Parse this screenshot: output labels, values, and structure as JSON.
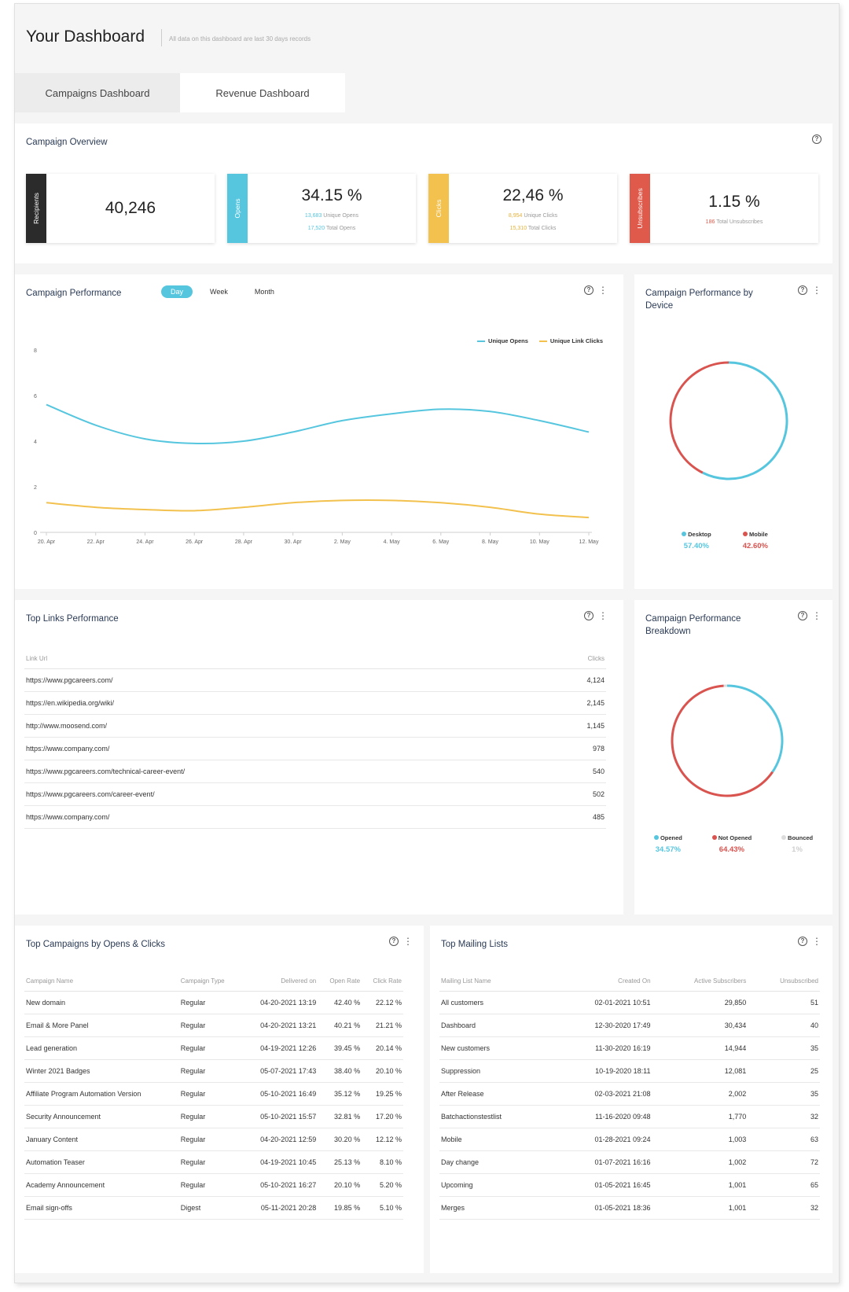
{
  "header": {
    "title": "Your Dashboard",
    "note": "All data on this dashboard are last 30 days records"
  },
  "tabs": [
    {
      "label": "Campaigns Dashboard",
      "active": true
    },
    {
      "label": "Revenue Dashboard",
      "active": false
    }
  ],
  "overview": {
    "title": "Campaign Overview",
    "kpis": [
      {
        "band": "Recipients",
        "color": "#2b2b2b",
        "value": "40,246",
        "sub": []
      },
      {
        "band": "Opens",
        "color": "#56c6df",
        "value": "34.15 %",
        "sub": [
          {
            "num": "13,683",
            "text": "Unique Opens"
          },
          {
            "num": "17,520",
            "text": "Total Opens"
          }
        ]
      },
      {
        "band": "Clicks",
        "color": "#f2c14e",
        "value": "22,46 %",
        "sub": [
          {
            "num": "8,954",
            "text": "Unique Clicks"
          },
          {
            "num": "15,310",
            "text": "Total Clicks"
          }
        ]
      },
      {
        "band": "Unsubscribes",
        "color": "#e05a4b",
        "value": "1.15 %",
        "sub": [
          {
            "num": "186",
            "text": "Total Unsubscribes"
          }
        ]
      }
    ]
  },
  "performance": {
    "title": "Campaign Performance",
    "periods": [
      {
        "label": "Day",
        "active": true
      },
      {
        "label": "Week",
        "active": false
      },
      {
        "label": "Month",
        "active": false
      }
    ]
  },
  "chart_data": [
    {
      "type": "line",
      "x": [
        "20. Apr",
        "22. Apr",
        "24. Apr",
        "26. Apr",
        "28. Apr",
        "30. Apr",
        "2. May",
        "4. May",
        "6. May",
        "8. May",
        "10. May",
        "12. May"
      ],
      "series": [
        {
          "name": "Unique Opens",
          "color": "#56c6df",
          "values": [
            5.6,
            4.7,
            4.1,
            3.9,
            4.0,
            4.4,
            4.9,
            5.2,
            5.4,
            5.3,
            4.9,
            4.4
          ]
        },
        {
          "name": "Unique Link Clicks",
          "color": "#f2c14e",
          "values": [
            1.3,
            1.1,
            1.0,
            0.95,
            1.1,
            1.3,
            1.4,
            1.4,
            1.3,
            1.1,
            0.8,
            0.65
          ]
        }
      ],
      "yticks": [
        0,
        2,
        4,
        6,
        8
      ],
      "ylim": [
        0,
        8
      ],
      "legend": "top-right",
      "grid": false
    },
    {
      "type": "pie",
      "labels": [
        "Desktop",
        "Mobile"
      ],
      "values": [
        57.4,
        42.6
      ],
      "pct_labels": [
        "57.40%",
        "42.60%"
      ],
      "colors": [
        "#56c6df",
        "#d9534f"
      ]
    },
    {
      "type": "pie",
      "labels": [
        "Opened",
        "Not Opened",
        "Bounced"
      ],
      "values": [
        34.57,
        64.43,
        1
      ],
      "pct_labels": [
        "34.57%",
        "64.43%",
        "1%"
      ],
      "colors": [
        "#56c6df",
        "#d9534f",
        "#dcdcdc"
      ]
    }
  ],
  "device": {
    "title": "Campaign Performance by Device"
  },
  "breakdown": {
    "title": "Campaign Performance Breakdown"
  },
  "links": {
    "title": "Top Links Performance",
    "headers": [
      "Link Url",
      "Clicks"
    ],
    "rows": [
      [
        "https://www.pgcareers.com/",
        "4,124"
      ],
      [
        "https://en.wikipedia.org/wiki/",
        "2,145"
      ],
      [
        "http://www.moosend.com/",
        "1,145"
      ],
      [
        "https://www.company.com/",
        "978"
      ],
      [
        "https://www.pgcareers.com/technical-career-event/",
        "540"
      ],
      [
        "https://www.pgcareers.com/career-event/",
        "502"
      ],
      [
        "https://www.company.com/",
        "485"
      ]
    ]
  },
  "campaigns": {
    "title": "Top Campaigns by Opens & Clicks",
    "headers": [
      "Campaign Name",
      "Campaign Type",
      "Delivered on",
      "Open Rate",
      "Click Rate"
    ],
    "rows": [
      [
        "New domain",
        "Regular",
        "04-20-2021 13:19",
        "42.40 %",
        "22.12 %"
      ],
      [
        "Email & More Panel",
        "Regular",
        "04-20-2021 13:21",
        "40.21 %",
        "21.21 %"
      ],
      [
        "Lead generation",
        "Regular",
        "04-19-2021 12:26",
        "39.45 %",
        "20.14 %"
      ],
      [
        "Winter 2021 Badges",
        "Regular",
        "05-07-2021 17:43",
        "38.40 %",
        "20.10 %"
      ],
      [
        "Affiliate Program Automation Version",
        "Regular",
        "05-10-2021 16:49",
        "35.12 %",
        "19.25 %"
      ],
      [
        "Security Announcement",
        "Regular",
        "05-10-2021 15:57",
        "32.81 %",
        "17.20 %"
      ],
      [
        "January Content",
        "Regular",
        "04-20-2021 12:59",
        "30.20 %",
        "12.12 %"
      ],
      [
        "Automation Teaser",
        "Regular",
        "04-19-2021 10:45",
        "25.13 %",
        "8.10 %"
      ],
      [
        "Academy Announcement",
        "Regular",
        "05-10-2021 16:27",
        "20.10 %",
        "5.20 %"
      ],
      [
        "Email sign-offs",
        "Digest",
        "05-11-2021 20:28",
        "19.85 %",
        "5.10 %"
      ]
    ]
  },
  "mailing": {
    "title": "Top Mailing Lists",
    "headers": [
      "Mailing List Name",
      "Created On",
      "Active Subscribers",
      "Unsubscribed"
    ],
    "rows": [
      [
        "All customers",
        "02-01-2021 10:51",
        "29,850",
        "51"
      ],
      [
        "Dashboard",
        "12-30-2020 17:49",
        "30,434",
        "40"
      ],
      [
        "New customers",
        "11-30-2020 16:19",
        "14,944",
        "35"
      ],
      [
        "Suppression",
        "10-19-2020 18:11",
        "12,081",
        "25"
      ],
      [
        "After Release",
        "02-03-2021 21:08",
        "2,002",
        "35"
      ],
      [
        "Batchactionstestlist",
        "11-16-2020 09:48",
        "1,770",
        "32"
      ],
      [
        "Mobile",
        "01-28-2021 09:24",
        "1,003",
        "63"
      ],
      [
        "Day change",
        "01-07-2021 16:16",
        "1,002",
        "72"
      ],
      [
        "Upcoming",
        "01-05-2021 16:45",
        "1,001",
        "65"
      ],
      [
        "Merges",
        "01-05-2021 18:36",
        "1,001",
        "32"
      ]
    ]
  }
}
